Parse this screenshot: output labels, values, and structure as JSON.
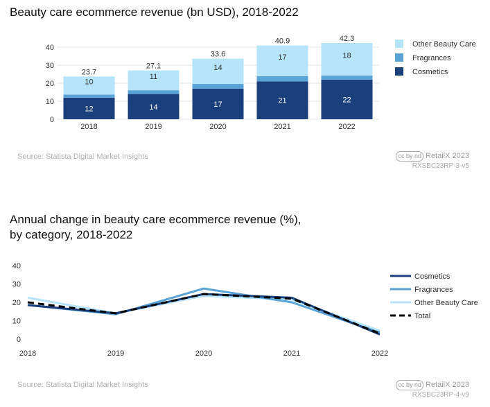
{
  "chart_data": [
    {
      "type": "bar",
      "stacked": true,
      "title": "Beauty care ecommerce revenue (bn USD), 2018-2022",
      "categories": [
        "2018",
        "2019",
        "2020",
        "2021",
        "2022"
      ],
      "series": [
        {
          "name": "Cosmetics",
          "values": [
            12,
            14,
            17,
            21,
            22
          ],
          "color": "#1b3f7b",
          "labels": [
            "12",
            "14",
            "17",
            "21",
            "22"
          ]
        },
        {
          "name": "Fragrances",
          "values": [
            1.7,
            2.1,
            2.6,
            2.9,
            2.3
          ],
          "color": "#5aa3d6",
          "labels": []
        },
        {
          "name": "Other Beauty Care",
          "values": [
            10,
            11,
            14,
            17,
            18
          ],
          "color": "#b5e4fb",
          "labels": [
            "10",
            "11",
            "14",
            "17",
            "18"
          ]
        }
      ],
      "totals": [
        "23.7",
        "27.1",
        "33.6",
        "40.9",
        "42.3"
      ],
      "ylim": [
        0,
        45
      ],
      "yticks": [
        "0",
        "10",
        "20",
        "30",
        "40"
      ],
      "legend": [
        "Other Beauty Care",
        "Fragrances",
        "Cosmetics"
      ],
      "source": "Source: Statista Digital Market Insights",
      "credit": "RetailX 2023",
      "code": "RXSBC23RP-3-v5"
    },
    {
      "type": "line",
      "title_lines": [
        "Annual change in beauty care ecommerce revenue (%),",
        "by category, 2018-2022"
      ],
      "categories": [
        "2018",
        "2019",
        "2020",
        "2021",
        "2022"
      ],
      "series": [
        {
          "name": "Cosmetics",
          "values": [
            18.5,
            14,
            24.5,
            22.5,
            2.5
          ],
          "color": "#1b3f7b",
          "dashed": false
        },
        {
          "name": "Fragrances",
          "values": [
            18.5,
            13.5,
            27.5,
            20,
            3.5
          ],
          "color": "#5aa3d6",
          "dashed": false
        },
        {
          "name": "Other Beauty Care",
          "values": [
            22.5,
            14,
            23.5,
            21.5,
            4.5
          ],
          "color": "#b5e4fb",
          "dashed": false
        },
        {
          "name": "Total",
          "values": [
            20,
            14,
            24.5,
            22,
            3
          ],
          "color": "#000000",
          "dashed": true
        }
      ],
      "ylim": [
        0,
        40
      ],
      "yticks": [
        "0",
        "10",
        "20",
        "30",
        "40"
      ],
      "source": "Source: Statista Digital Market Insights",
      "credit": "RetailX 2023",
      "code": "RXSBC23RP-4-v9"
    }
  ],
  "cc_icons": "cc by nd"
}
